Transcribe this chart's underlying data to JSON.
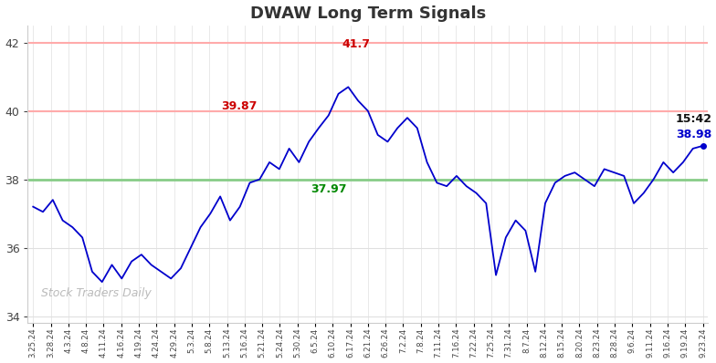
{
  "title": "DWAW Long Term Signals",
  "title_color": "#333333",
  "background_color": "#ffffff",
  "line_color": "#0000cc",
  "line_width": 1.3,
  "hline_red1": 42.0,
  "hline_red2": 40.0,
  "hline_green": 38.0,
  "hline_red_color": "#ffaaaa",
  "hline_green_color": "#88cc88",
  "ylim": [
    33.8,
    42.5
  ],
  "yticks": [
    34,
    36,
    38,
    40,
    42
  ],
  "watermark": "Stock Traders Daily",
  "watermark_color": "#bbbbbb",
  "annotation_high": {
    "text": "41.7",
    "color": "#cc0000"
  },
  "annotation_peak": {
    "text": "39.87",
    "color": "#cc0000"
  },
  "annotation_low": {
    "text": "37.97",
    "color": "#008800"
  },
  "annotation_last_time": {
    "text": "15:42",
    "color": "#111111"
  },
  "annotation_last_val": {
    "text": "38.98",
    "color": "#0000cc"
  },
  "x_labels": [
    "3.25.24",
    "3.28.24",
    "4.3.24",
    "4.8.24",
    "4.11.24",
    "4.16.24",
    "4.19.24",
    "4.24.24",
    "4.29.24",
    "5.3.24",
    "5.8.24",
    "5.13.24",
    "5.16.24",
    "5.21.24",
    "5.24.24",
    "5.30.24",
    "6.5.24",
    "6.10.24",
    "6.17.24",
    "6.21.24",
    "6.26.24",
    "7.2.24",
    "7.8.24",
    "7.11.24",
    "7.16.24",
    "7.22.24",
    "7.25.24",
    "7.31.24",
    "8.7.24",
    "8.12.24",
    "8.15.24",
    "8.20.24",
    "8.23.24",
    "8.28.24",
    "9.6.24",
    "9.11.24",
    "9.16.24",
    "9.19.24",
    "9.23.24"
  ],
  "y_values": [
    37.2,
    37.05,
    37.4,
    36.8,
    36.6,
    36.3,
    35.3,
    35.0,
    35.5,
    35.1,
    35.6,
    35.8,
    35.5,
    35.3,
    35.1,
    35.4,
    36.0,
    36.6,
    37.0,
    37.5,
    36.8,
    37.2,
    37.9,
    38.0,
    38.5,
    38.3,
    38.9,
    38.5,
    39.1,
    39.5,
    39.87,
    40.5,
    40.7,
    40.3,
    40.0,
    39.3,
    39.1,
    39.5,
    39.8,
    39.5,
    38.5,
    37.9,
    37.8,
    38.1,
    37.8,
    37.6,
    37.3,
    35.2,
    36.3,
    36.8,
    36.5,
    35.3,
    37.3,
    37.9,
    38.1,
    38.2,
    38.0,
    37.8,
    38.3,
    38.2,
    38.1,
    37.3,
    37.6,
    38.0,
    38.5,
    38.2,
    38.5,
    38.9,
    38.98
  ]
}
